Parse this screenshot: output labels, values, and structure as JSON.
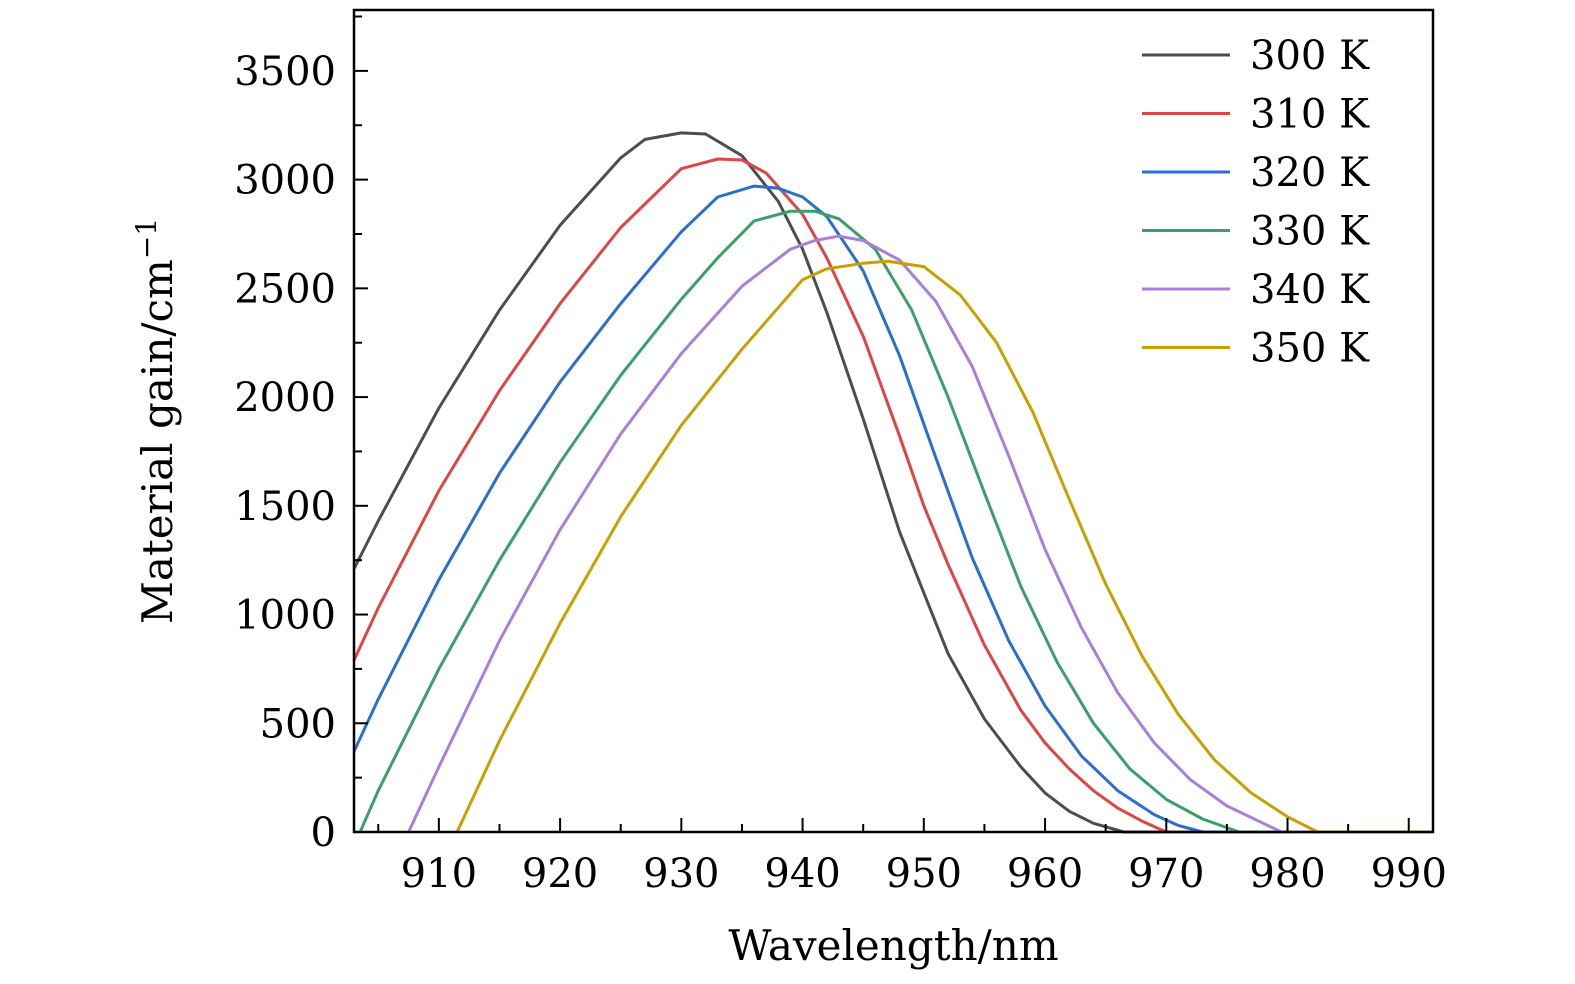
{
  "chart_data": {
    "type": "line",
    "title": "",
    "xlabel": "Wavelength/nm",
    "ylabel": "Material gain/cm",
    "ylabel_superscript": "−1",
    "xlim": [
      903,
      992
    ],
    "ylim": [
      0,
      3780
    ],
    "x_ticks": [
      910,
      920,
      930,
      940,
      950,
      960,
      970,
      980,
      990
    ],
    "x_tick_labels": [
      "910",
      "920",
      "930",
      "940",
      "950",
      "960",
      "970",
      "980",
      "990"
    ],
    "y_ticks": [
      0,
      500,
      1000,
      1500,
      2000,
      2500,
      3000,
      3500
    ],
    "y_tick_labels": [
      "0",
      "500",
      "1000",
      "1500",
      "2000",
      "2500",
      "3000",
      "3500"
    ],
    "grid": false,
    "legend_position": "top-right",
    "series": [
      {
        "name": "300 K",
        "color": "#4d4d4d",
        "x": [
          903,
          905,
          910,
          915,
          920,
          925,
          927,
          930,
          932,
          935,
          938,
          940,
          942,
          945,
          948,
          950,
          952,
          955,
          958,
          960,
          962,
          964,
          966.5,
          992
        ],
        "y": [
          1210,
          1430,
          1950,
          2400,
          2790,
          3100,
          3185,
          3215,
          3210,
          3110,
          2900,
          2680,
          2390,
          1900,
          1380,
          1100,
          820,
          520,
          300,
          180,
          95,
          40,
          0,
          0
        ]
      },
      {
        "name": "310 K",
        "color": "#e04545",
        "x": [
          903,
          905,
          910,
          915,
          920,
          925,
          930,
          933,
          935,
          937,
          940,
          942,
          945,
          948,
          950,
          952,
          955,
          958,
          960,
          962,
          964,
          966,
          968,
          970,
          992
        ],
        "y": [
          790,
          1030,
          1570,
          2030,
          2430,
          2780,
          3050,
          3095,
          3090,
          3030,
          2840,
          2640,
          2280,
          1820,
          1500,
          1230,
          860,
          560,
          410,
          290,
          190,
          110,
          50,
          0,
          0
        ]
      },
      {
        "name": "320 K",
        "color": "#2a6fcf",
        "x": [
          903,
          905,
          910,
          915,
          920,
          925,
          930,
          933,
          936,
          938,
          940,
          942,
          945,
          948,
          951,
          954,
          957,
          960,
          963,
          966,
          969,
          971,
          973,
          992
        ],
        "y": [
          370,
          610,
          1160,
          1650,
          2070,
          2430,
          2760,
          2920,
          2970,
          2960,
          2920,
          2830,
          2580,
          2190,
          1720,
          1260,
          880,
          580,
          350,
          190,
          80,
          30,
          0,
          0
        ]
      },
      {
        "name": "330 K",
        "color": "#3aa069",
        "x": [
          903.5,
          905,
          910,
          915,
          920,
          925,
          930,
          933,
          936,
          939,
          941,
          943,
          946,
          949,
          952,
          955,
          958,
          961,
          964,
          967,
          970,
          973,
          976,
          992
        ],
        "y": [
          0,
          190,
          750,
          1250,
          1700,
          2100,
          2450,
          2640,
          2810,
          2855,
          2855,
          2820,
          2680,
          2400,
          2000,
          1560,
          1130,
          780,
          500,
          290,
          150,
          60,
          0,
          0
        ]
      },
      {
        "name": "340 K",
        "color": "#a97fdb",
        "x": [
          907.5,
          910,
          915,
          920,
          925,
          930,
          935,
          939,
          941,
          943,
          945,
          948,
          951,
          954,
          957,
          960,
          963,
          966,
          969,
          972,
          975,
          978,
          979.5,
          992
        ],
        "y": [
          0,
          300,
          880,
          1390,
          1830,
          2200,
          2510,
          2680,
          2720,
          2740,
          2720,
          2630,
          2440,
          2140,
          1730,
          1300,
          940,
          640,
          410,
          240,
          120,
          40,
          0,
          0
        ]
      },
      {
        "name": "350 K",
        "color": "#c9a000",
        "x": [
          911.5,
          915,
          920,
          925,
          930,
          935,
          940,
          942,
          945,
          947,
          950,
          953,
          956,
          959,
          962,
          965,
          968,
          971,
          974,
          977,
          980,
          982.5,
          992
        ],
        "y": [
          0,
          420,
          960,
          1450,
          1870,
          2220,
          2540,
          2590,
          2615,
          2625,
          2600,
          2470,
          2250,
          1930,
          1530,
          1140,
          810,
          540,
          330,
          180,
          70,
          0,
          0
        ]
      }
    ]
  }
}
